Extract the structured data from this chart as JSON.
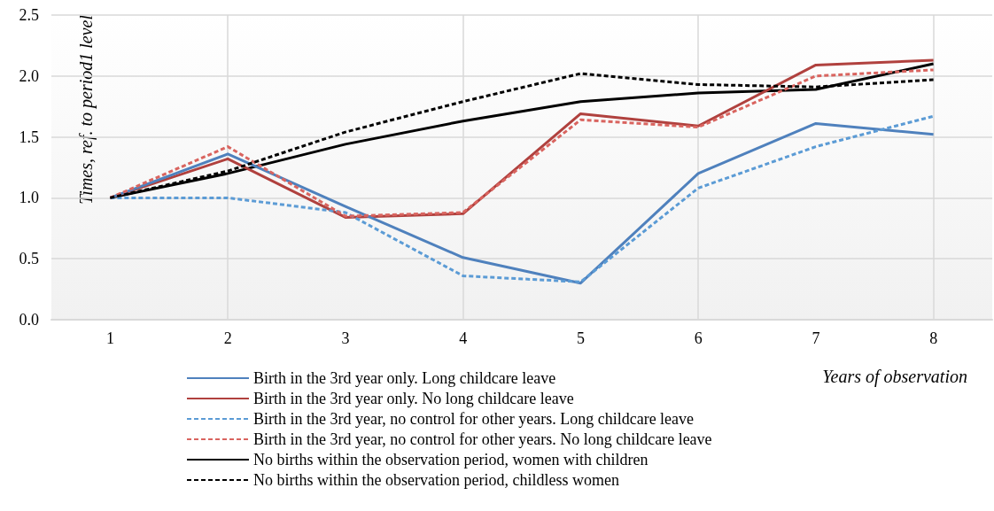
{
  "chart_data": {
    "type": "line",
    "xlabel": "Years of observation",
    "ylabel": "Times, ref. to period1 level",
    "categories": [
      "1",
      "2",
      "3",
      "4",
      "5",
      "6",
      "7",
      "8"
    ],
    "ylim": [
      0,
      2.5
    ],
    "yticks": [
      {
        "value": 0,
        "label": "0.0"
      },
      {
        "value": 0.5,
        "label": "0.5"
      },
      {
        "value": 1,
        "label": "1.0"
      },
      {
        "value": 1.5,
        "label": "1.5"
      },
      {
        "value": 2,
        "label": "2.0"
      },
      {
        "value": 2.5,
        "label": "2.5"
      }
    ],
    "grid": true,
    "legend": "bottom",
    "marker": "none",
    "series": [
      {
        "name": "Birth in the 3rd year only. Long childcare leave",
        "color": "#4f81bd",
        "line_style": "solid",
        "values": [
          1.0,
          1.36,
          0.93,
          0.51,
          0.3,
          1.2,
          1.61,
          1.52
        ]
      },
      {
        "name": "Birth in the 3rd year only. No long childcare leave",
        "color": "#b0413e",
        "line_style": "solid",
        "values": [
          1.0,
          1.32,
          0.84,
          0.87,
          1.69,
          1.59,
          2.09,
          2.13
        ]
      },
      {
        "name": "Birth in the 3rd year, no control for other years. Long childcare leave",
        "color": "#5b9bd5",
        "line_style": "dashed",
        "values": [
          1.0,
          1.0,
          0.88,
          0.36,
          0.31,
          1.08,
          1.42,
          1.67
        ]
      },
      {
        "name": "Birth in the 3rd year, no control for other years. No long childcare leave",
        "color": "#d9645f",
        "line_style": "dashed",
        "values": [
          1.0,
          1.42,
          0.85,
          0.88,
          1.64,
          1.58,
          2.0,
          2.05
        ]
      },
      {
        "name": "No births within the observation period, women with children",
        "color": "#000000",
        "line_style": "solid",
        "values": [
          1.0,
          1.2,
          1.44,
          1.63,
          1.79,
          1.86,
          1.89,
          2.1
        ]
      },
      {
        "name": "No births within the observation period, childless women",
        "color": "#000000",
        "line_style": "dashed",
        "values": [
          1.0,
          1.22,
          1.54,
          1.79,
          2.02,
          1.93,
          1.91,
          1.97
        ]
      }
    ]
  }
}
